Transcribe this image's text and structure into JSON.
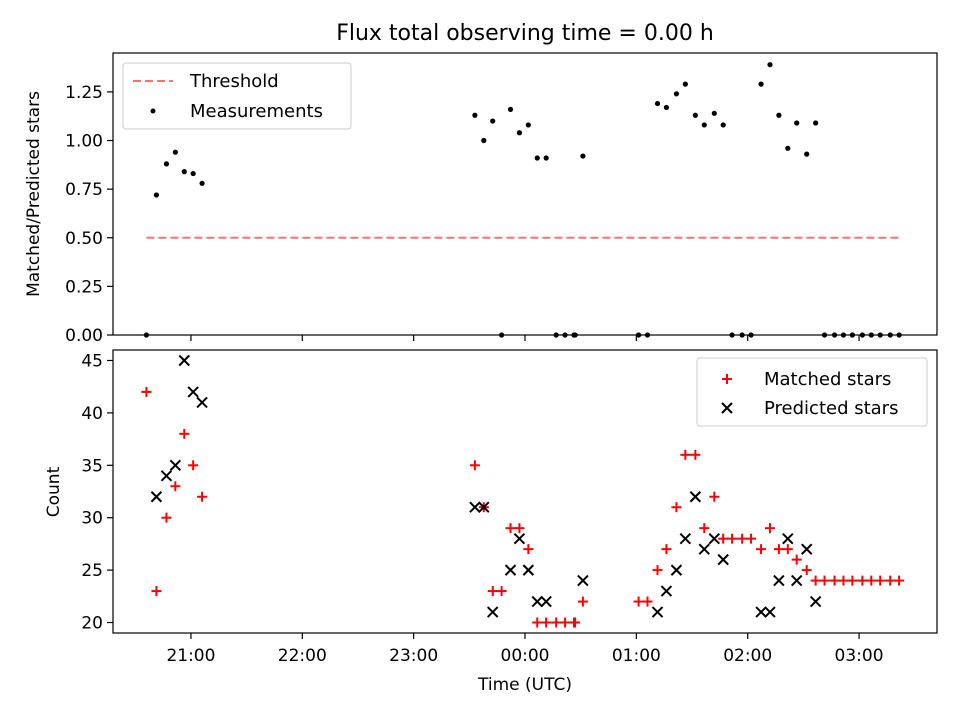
{
  "title": "Flux total observing time = 0.00 h",
  "xlabel": "Time (UTC)",
  "xticks": [
    "21:00",
    "22:00",
    "23:00",
    "00:00",
    "01:00",
    "02:00",
    "03:00"
  ],
  "colors": {
    "threshold": "#ff7070",
    "measurements": "#000000",
    "matched": "#ff0000",
    "predicted": "#000000"
  },
  "chart_data": [
    {
      "type": "scatter",
      "ylabel": "Matched/Predicted stars",
      "xlim_hours": [
        20.3,
        27.7
      ],
      "ylim": [
        0,
        1.45
      ],
      "yticks": [
        "0.00",
        "0.25",
        "0.50",
        "0.75",
        "1.00",
        "1.25"
      ],
      "legend_position": "top-left",
      "threshold": {
        "name": "Threshold",
        "y": 0.5,
        "x_range": [
          20.6,
          27.37
        ]
      },
      "series": [
        {
          "name": "Measurements",
          "x": [
            20.6,
            20.69,
            20.78,
            20.86,
            20.94,
            21.02,
            21.1,
            23.55,
            23.63,
            23.71,
            23.79,
            23.87,
            23.95,
            24.03,
            24.11,
            24.19,
            24.28,
            24.36,
            24.44,
            24.45,
            24.52,
            25.02,
            25.1,
            25.19,
            25.27,
            25.36,
            25.44,
            25.53,
            25.61,
            25.7,
            25.78,
            25.86,
            25.95,
            26.03,
            26.12,
            26.2,
            26.28,
            26.36,
            26.44,
            26.53,
            26.61,
            26.69,
            26.78,
            26.86,
            26.94,
            27.03,
            27.11,
            27.19,
            27.28,
            27.36
          ],
          "y": [
            0,
            0.72,
            0.88,
            0.94,
            0.84,
            0.83,
            0.78,
            1.13,
            1.0,
            1.1,
            0,
            1.16,
            1.04,
            1.08,
            0.91,
            0.91,
            0,
            0,
            0,
            0,
            0.92,
            0,
            0,
            1.19,
            1.17,
            1.24,
            1.29,
            1.13,
            1.08,
            1.14,
            1.08,
            0,
            0,
            0,
            1.29,
            1.39,
            1.13,
            0.96,
            1.09,
            0.93,
            1.09,
            0,
            0,
            0,
            0,
            0,
            0,
            0,
            0,
            0
          ]
        }
      ]
    },
    {
      "type": "scatter",
      "ylabel": "Count",
      "xlim_hours": [
        20.3,
        27.7
      ],
      "ylim": [
        19,
        46
      ],
      "yticks": [
        "20",
        "25",
        "30",
        "35",
        "40",
        "45"
      ],
      "legend_position": "top-right",
      "series": [
        {
          "name": "Matched stars",
          "marker": "+",
          "x": [
            20.6,
            20.69,
            20.78,
            20.86,
            20.94,
            21.02,
            21.1,
            23.55,
            23.63,
            23.71,
            23.79,
            23.87,
            23.95,
            24.03,
            24.11,
            24.19,
            24.28,
            24.36,
            24.44,
            24.45,
            24.52,
            25.02,
            25.1,
            25.19,
            25.27,
            25.36,
            25.44,
            25.53,
            25.61,
            25.7,
            25.78,
            25.86,
            25.95,
            26.03,
            26.12,
            26.2,
            26.28,
            26.36,
            26.44,
            26.53,
            26.61,
            26.69,
            26.78,
            26.86,
            26.94,
            27.03,
            27.11,
            27.19,
            27.28,
            27.36
          ],
          "values": [
            42,
            23,
            30,
            33,
            38,
            35,
            32,
            35,
            31,
            23,
            23,
            29,
            29,
            27,
            20,
            20,
            20,
            20,
            20,
            20,
            22,
            22,
            22,
            25,
            27,
            31,
            36,
            36,
            29,
            32,
            28,
            28,
            28,
            28,
            27,
            29,
            27,
            27,
            26,
            25,
            24,
            24,
            24,
            24,
            24,
            24,
            24,
            24,
            24,
            24
          ]
        },
        {
          "name": "Predicted stars",
          "marker": "x",
          "x": [
            20.69,
            20.78,
            20.86,
            20.94,
            21.02,
            21.1,
            23.55,
            23.63,
            23.71,
            23.87,
            23.95,
            24.03,
            24.11,
            24.19,
            24.52,
            25.19,
            25.27,
            25.36,
            25.44,
            25.53,
            25.61,
            25.7,
            25.78,
            26.12,
            26.2,
            26.28,
            26.36,
            26.44,
            26.53,
            26.61
          ],
          "values": [
            32,
            34,
            35,
            45,
            42,
            41,
            31,
            31,
            21,
            25,
            28,
            25,
            22,
            22,
            24,
            21,
            23,
            25,
            28,
            32,
            27,
            28,
            26,
            21,
            21,
            24,
            28,
            24,
            27,
            22
          ]
        }
      ]
    }
  ]
}
